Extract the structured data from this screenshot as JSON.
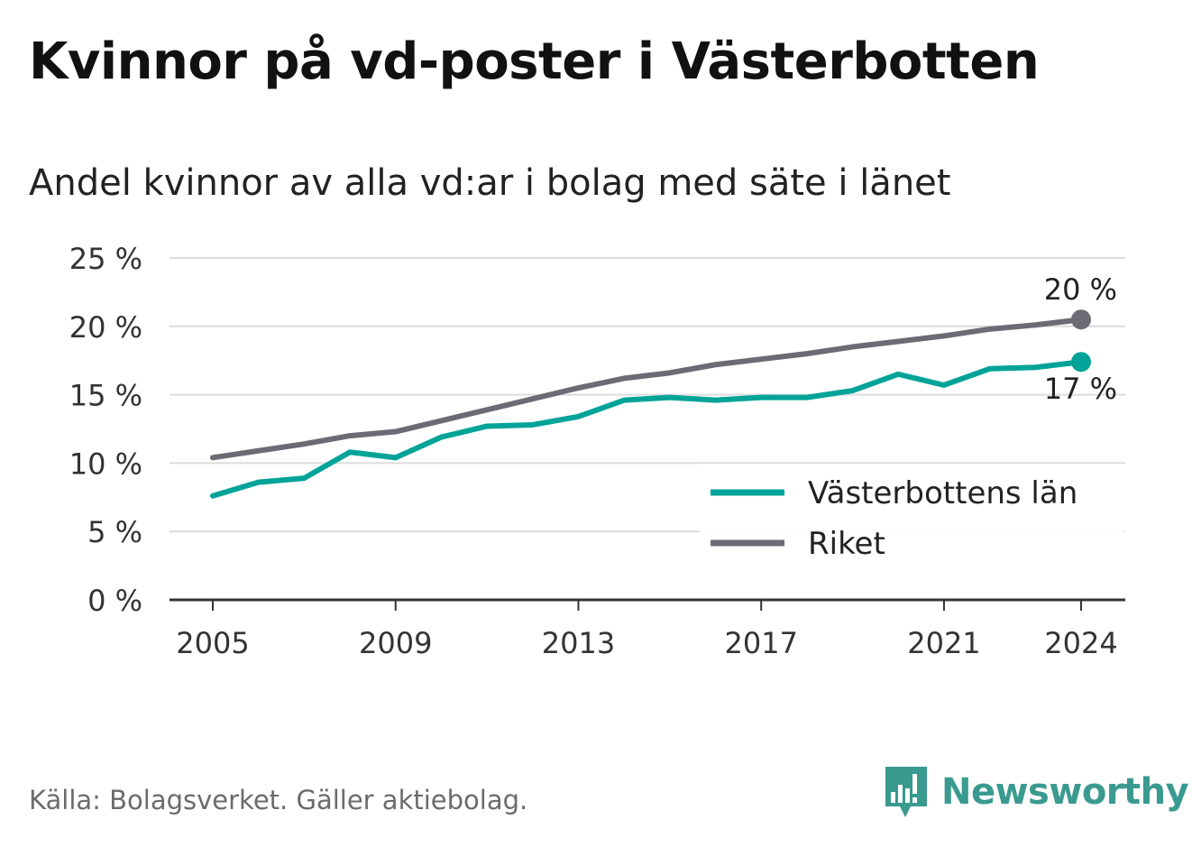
{
  "title": "Kvinnor på vd-poster i Västerbotten",
  "subtitle": "Andel kvinnor av alla vd:ar i bolag med säte i länet",
  "source": "Källa: Bolagsverket. Gäller aktiebolag.",
  "brand": {
    "name": "Newsworthy",
    "icon": "newsworthy-logo-icon",
    "color": "#3a9a90"
  },
  "chart_data": {
    "type": "line",
    "x": [
      2005,
      2006,
      2007,
      2008,
      2009,
      2010,
      2011,
      2012,
      2013,
      2014,
      2015,
      2016,
      2017,
      2018,
      2019,
      2020,
      2021,
      2022,
      2023,
      2024
    ],
    "series": [
      {
        "name": "Västerbottens län",
        "color": "#00a398",
        "values": [
          7.6,
          8.6,
          8.9,
          10.8,
          10.4,
          11.9,
          12.7,
          12.8,
          13.4,
          14.6,
          14.8,
          14.6,
          14.8,
          14.8,
          15.3,
          16.5,
          15.7,
          16.9,
          17.0,
          17.4
        ],
        "end_label": "17 %"
      },
      {
        "name": "Riket",
        "color": "#6c6b73",
        "values": [
          10.4,
          10.9,
          11.4,
          12.0,
          12.3,
          13.1,
          13.9,
          14.7,
          15.5,
          16.2,
          16.6,
          17.2,
          17.6,
          18.0,
          18.5,
          18.9,
          19.3,
          19.8,
          20.1,
          20.5
        ],
        "end_label": "20 %"
      }
    ],
    "ylim": [
      0,
      25
    ],
    "y_ticks": [
      0,
      5,
      10,
      15,
      20,
      25
    ],
    "y_tick_labels": [
      "0 %",
      "5 %",
      "10 %",
      "15 %",
      "20 %",
      "25 %"
    ],
    "x_ticks": [
      2005,
      2009,
      2013,
      2017,
      2021,
      2024
    ],
    "x_tick_labels": [
      "2005",
      "2009",
      "2013",
      "2017",
      "2021",
      "2024"
    ],
    "grid": true,
    "legend_position": "bottom-right"
  }
}
